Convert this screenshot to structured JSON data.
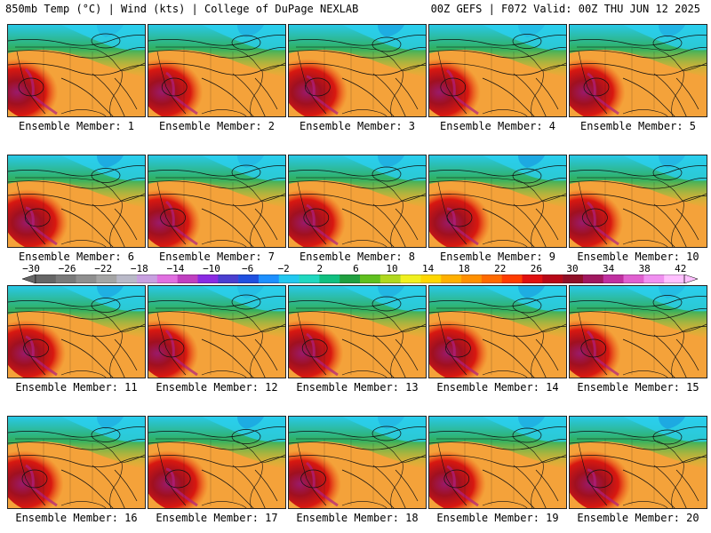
{
  "header": {
    "left_title": "850mb Temp (°C) | Wind (kts) | College of DuPage NEXLAB",
    "right_title": "00Z GEFS | F072 Valid: 00Z THU JUN 12 2025"
  },
  "members": [
    "Ensemble Member: 1",
    "Ensemble Member: 2",
    "Ensemble Member: 3",
    "Ensemble Member: 4",
    "Ensemble Member: 5",
    "Ensemble Member: 6",
    "Ensemble Member: 7",
    "Ensemble Member: 8",
    "Ensemble Member: 9",
    "Ensemble Member: 10",
    "Ensemble Member: 11",
    "Ensemble Member: 12",
    "Ensemble Member: 13",
    "Ensemble Member: 14",
    "Ensemble Member: 15",
    "Ensemble Member: 16",
    "Ensemble Member: 17",
    "Ensemble Member: 18",
    "Ensemble Member: 19",
    "Ensemble Member: 20"
  ],
  "colorbar": {
    "labels": [
      "−30",
      "−26",
      "−22",
      "−18",
      "−14",
      "−10",
      "−6",
      "−2",
      "2",
      "6",
      "10",
      "14",
      "18",
      "22",
      "26",
      "30",
      "34",
      "38",
      "42"
    ],
    "colors": [
      "#666666",
      "#7a7a7a",
      "#8f8f8f",
      "#a5a5a5",
      "#b9b9c8",
      "#c8a0e0",
      "#e070e0",
      "#c040c0",
      "#8a2be2",
      "#4b3fd0",
      "#2050e0",
      "#1e90ff",
      "#22c8f0",
      "#20d8c0",
      "#10c080",
      "#20a040",
      "#60c020",
      "#b0d820",
      "#f0f020",
      "#ffd700",
      "#ffb000",
      "#ff9000",
      "#ff6a00",
      "#ff3c00",
      "#e01010",
      "#b80818",
      "#901028",
      "#a01860",
      "#c030a0",
      "#e060d0",
      "#f090f0",
      "#ffc0ff"
    ]
  }
}
